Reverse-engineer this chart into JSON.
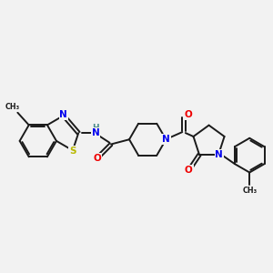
{
  "background_color": "#f2f2f2",
  "line_color": "#1a1a1a",
  "bond_width": 1.4,
  "figsize": [
    3.0,
    3.0
  ],
  "dpi": 100,
  "atom_colors": {
    "S": "#b8b800",
    "N": "#0000ee",
    "O": "#ee0000",
    "C": "#1a1a1a",
    "H": "#4a8a8a"
  }
}
